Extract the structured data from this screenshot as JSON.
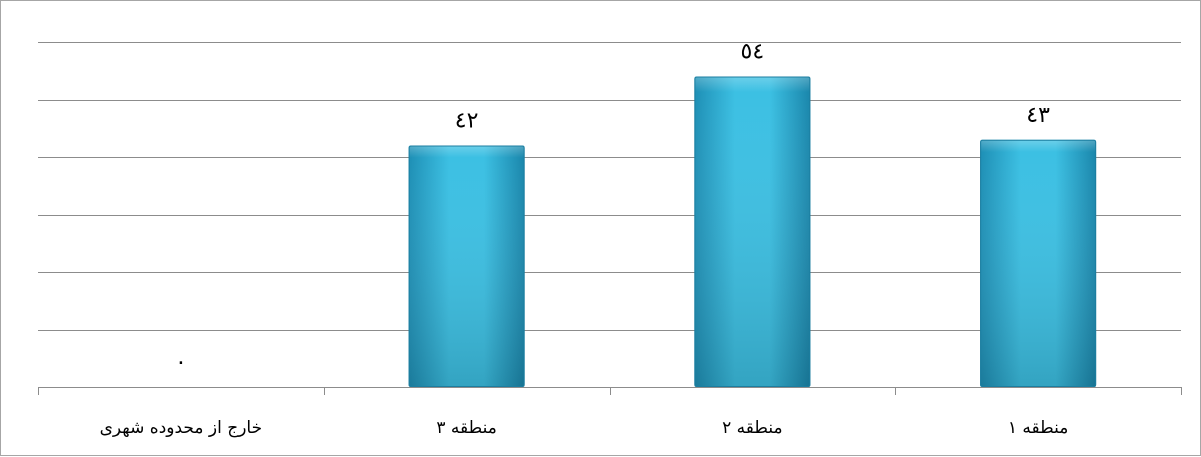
{
  "chart_data": {
    "type": "bar",
    "categories": [
      "منطقه ۱",
      "منطقه ۲",
      "منطقه ۳",
      "خارج از محدوده شهری"
    ],
    "values": [
      43,
      54,
      42,
      0
    ],
    "value_labels": [
      "٤٣",
      "٥٤",
      "٤٢",
      "٠"
    ],
    "category_order": "right-to-left",
    "ylim": [
      0,
      60
    ],
    "grid": true,
    "title": "",
    "xlabel": "",
    "ylabel": "",
    "bar_color": "#2fb2d6",
    "gridline_color": "#8c8c8c"
  }
}
